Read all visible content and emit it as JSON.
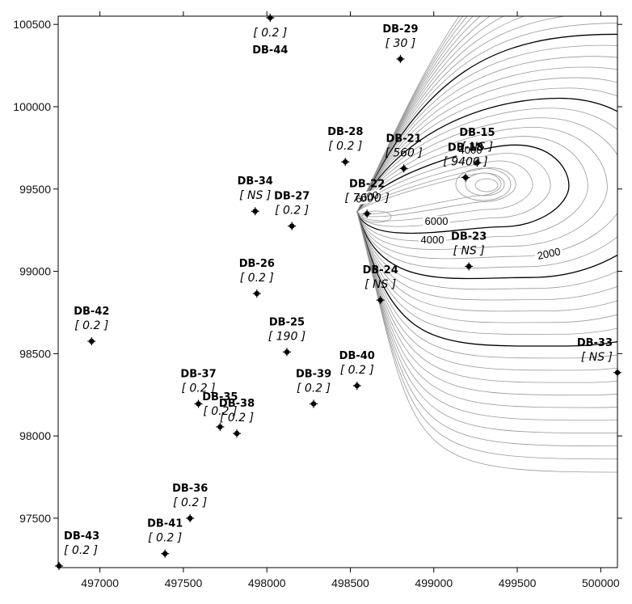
{
  "chart_data": {
    "type": "scatter",
    "title": "",
    "xlabel": "",
    "ylabel": "",
    "xlim": [
      496750,
      500100
    ],
    "ylim": [
      97200,
      100550
    ],
    "x_ticks": [
      "497000",
      "497500",
      "498000",
      "498500",
      "499000",
      "499500",
      "500000"
    ],
    "y_ticks": [
      "97500",
      "98000",
      "98500",
      "99000",
      "99500",
      "100000",
      "100500"
    ],
    "wells": [
      {
        "name": "DB-44",
        "value": "[ 0.2 ]",
        "x": 498020,
        "y": 100540,
        "label_pos": "below"
      },
      {
        "name": "DB-29",
        "value": "[ 30 ]",
        "x": 498800,
        "y": 100290,
        "label_pos": "above"
      },
      {
        "name": "DB-28",
        "value": "[ 0.2 ]",
        "x": 498470,
        "y": 99665,
        "label_pos": "above"
      },
      {
        "name": "DB-21",
        "value": "[ 560 ]",
        "x": 498820,
        "y": 99625,
        "label_pos": "above"
      },
      {
        "name": "DB-18",
        "value": "[ 9400 ]",
        "x": 499190,
        "y": 99570,
        "label_pos": "above"
      },
      {
        "name": "DB-15",
        "value": "[ NS ]",
        "x": 499260,
        "y": 99660,
        "label_pos": "above"
      },
      {
        "name": "DB-34",
        "value": "[ NS ]",
        "x": 497930,
        "y": 99365,
        "label_pos": "above"
      },
      {
        "name": "DB-27",
        "value": "[ 0.2 ]",
        "x": 498150,
        "y": 99275,
        "label_pos": "above"
      },
      {
        "name": "DB-22",
        "value": "[ 7600 ]",
        "x": 498600,
        "y": 99350,
        "label_pos": "above"
      },
      {
        "name": "DB-23",
        "value": "[ NS ]",
        "x": 499210,
        "y": 99030,
        "label_pos": "above"
      },
      {
        "name": "DB-26",
        "value": "[ 0.2 ]",
        "x": 497940,
        "y": 98865,
        "label_pos": "above"
      },
      {
        "name": "DB-24",
        "value": "[ NS ]",
        "x": 498680,
        "y": 98825,
        "label_pos": "above"
      },
      {
        "name": "DB-42",
        "value": "[ 0.2 ]",
        "x": 496950,
        "y": 98575,
        "label_pos": "above"
      },
      {
        "name": "DB-25",
        "value": "[ 190 ]",
        "x": 498120,
        "y": 98510,
        "label_pos": "above"
      },
      {
        "name": "DB-33",
        "value": "[ NS ]",
        "x": 500100,
        "y": 98385,
        "label_pos": "above-left"
      },
      {
        "name": "DB-40",
        "value": "[ 0.2 ]",
        "x": 498540,
        "y": 98305,
        "label_pos": "above"
      },
      {
        "name": "DB-39",
        "value": "[ 0.2 ]",
        "x": 498280,
        "y": 98195,
        "label_pos": "above"
      },
      {
        "name": "DB-37",
        "value": "[ 0.2 ]",
        "x": 497590,
        "y": 98195,
        "label_pos": "above"
      },
      {
        "name": "DB-35",
        "value": "[ 0.2 ]",
        "x": 497720,
        "y": 98055,
        "label_pos": "above"
      },
      {
        "name": "DB-38",
        "value": "[ 0.2 ]",
        "x": 497820,
        "y": 98015,
        "label_pos": "above"
      },
      {
        "name": "DB-36",
        "value": "[ 0.2 ]",
        "x": 497540,
        "y": 97500,
        "label_pos": "above"
      },
      {
        "name": "DB-41",
        "value": "[ 0.2 ]",
        "x": 497390,
        "y": 97285,
        "label_pos": "above"
      },
      {
        "name": "DB-43",
        "value": "[ 0.2 ]",
        "x": 496755,
        "y": 97210,
        "label_pos": "above-right"
      }
    ],
    "contour_labels": [
      "2000",
      "4000",
      "6000",
      "4000",
      "6000"
    ],
    "colors": {
      "bold_contour": "#000000",
      "light_contour": "#999999",
      "marker": "#000000"
    }
  }
}
